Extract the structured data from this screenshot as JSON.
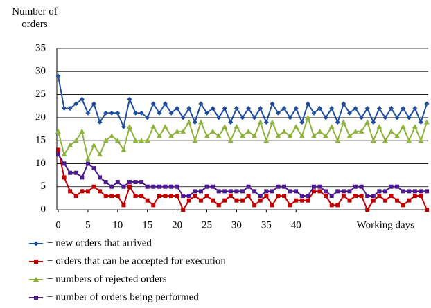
{
  "chart_data": {
    "type": "line",
    "y_label": "Number of orders",
    "x_label": "Working days",
    "x": [
      0,
      1,
      2,
      3,
      4,
      5,
      6,
      7,
      8,
      9,
      10,
      11,
      12,
      13,
      14,
      15,
      16,
      17,
      18,
      19,
      20,
      21,
      22,
      23,
      24,
      25,
      26,
      27,
      28,
      29,
      30,
      31,
      32,
      33,
      34,
      35,
      36,
      37,
      38,
      39,
      40,
      41,
      42,
      43,
      44,
      45,
      46,
      47,
      48,
      49,
      50,
      51,
      52,
      53,
      54,
      55,
      56,
      57,
      58,
      59,
      60,
      61,
      62
    ],
    "series": [
      {
        "name": "− new orders that arrived",
        "color": "#1f4e9c",
        "marker": "diamond",
        "values": [
          29,
          22,
          22,
          23,
          24,
          21,
          23,
          19,
          21,
          21,
          21,
          18,
          24,
          21,
          21,
          20,
          23,
          21,
          23,
          21,
          22,
          20,
          22,
          19,
          23,
          21,
          22,
          20,
          22,
          19,
          22,
          20,
          22,
          20,
          22,
          19,
          23,
          21,
          22,
          20,
          22,
          19,
          23,
          21,
          22,
          20,
          22,
          19,
          23,
          21,
          22,
          20,
          22,
          19,
          22,
          20,
          22,
          20,
          22,
          20,
          22,
          19,
          23
        ]
      },
      {
        "name": "− orders that can be accepted for execution",
        "color": "#c00000",
        "marker": "square",
        "values": [
          13,
          7,
          4,
          3,
          4,
          4,
          5,
          4,
          3,
          3,
          3,
          1,
          5,
          3,
          3,
          2,
          1,
          3,
          3,
          3,
          3,
          0,
          2,
          3,
          2,
          3,
          2,
          1,
          2,
          3,
          2,
          2,
          3,
          1,
          2,
          3,
          1,
          3,
          3,
          1,
          2,
          2,
          2,
          4,
          4,
          3,
          1,
          1,
          3,
          2,
          3,
          3,
          0,
          2,
          3,
          2,
          3,
          2,
          1,
          2,
          3,
          3,
          0
        ]
      },
      {
        "name": "− numbers of rejected orders",
        "color": "#8db33a",
        "marker": "triangle",
        "values": [
          17,
          12,
          14,
          15,
          17,
          11,
          14,
          12,
          15,
          16,
          15,
          13,
          18,
          15,
          15,
          15,
          18,
          16,
          18,
          16,
          17,
          17,
          19,
          15,
          19,
          16,
          17,
          16,
          18,
          15,
          18,
          16,
          17,
          16,
          19,
          15,
          19,
          16,
          17,
          16,
          18,
          16,
          20,
          16,
          17,
          16,
          18,
          15,
          19,
          16,
          17,
          17,
          19,
          15,
          18,
          15,
          17,
          16,
          18,
          15,
          18,
          15,
          19
        ]
      },
      {
        "name": "− number of orders being performed",
        "color": "#4b1a8c",
        "marker": "square",
        "values": [
          12,
          10,
          8,
          8,
          7,
          10,
          9,
          7,
          6,
          5,
          6,
          5,
          6,
          6,
          6,
          5,
          5,
          5,
          5,
          5,
          5,
          3,
          3,
          4,
          4,
          5,
          5,
          4,
          4,
          4,
          4,
          4,
          5,
          4,
          3,
          4,
          4,
          5,
          5,
          4,
          4,
          3,
          3,
          5,
          5,
          4,
          3,
          4,
          4,
          4,
          5,
          5,
          3,
          3,
          4,
          4,
          5,
          5,
          4,
          4,
          4,
          4,
          4
        ]
      }
    ],
    "xlim": [
      0,
      62
    ],
    "xticks": [
      0,
      5,
      10,
      15,
      20,
      25,
      30,
      35,
      40
    ],
    "ylim": [
      0,
      35
    ],
    "yticks": [
      0,
      5,
      10,
      15,
      20,
      25,
      30,
      35
    ],
    "grid": true
  }
}
